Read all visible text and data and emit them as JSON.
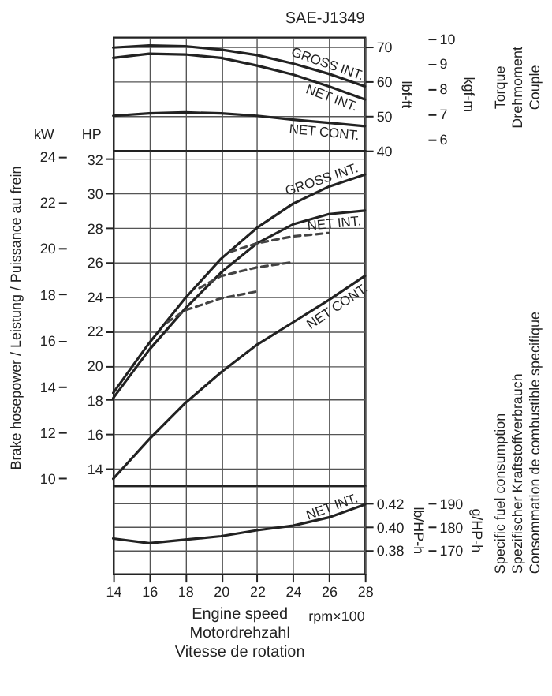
{
  "chart_data": [
    {
      "type": "line",
      "title": "SAE-J1349",
      "x": [
        14,
        16,
        18,
        20,
        22,
        24,
        26,
        28
      ],
      "xlim": [
        14,
        28
      ],
      "xticks": [
        14,
        16,
        18,
        20,
        22,
        24,
        26,
        28
      ],
      "ylim": [
        40,
        72.7
      ],
      "yticks": [
        40,
        50,
        60,
        70
      ],
      "ylabel": "lbf-ft",
      "y2label": "kgf-m",
      "y2lim": [
        5.53,
        10.05
      ],
      "y2ticks": [
        6,
        7,
        8,
        9,
        10
      ],
      "grid": true,
      "tick_labels": "y",
      "annotations": [
        "Torque\nDrehmoment\nCouple"
      ],
      "series": [
        {
          "name": "GROSS INT.",
          "color": "#222222",
          "values": [
            69.7,
            70.3,
            70.1,
            69.1,
            67.5,
            65.1,
            62.1,
            58.5
          ]
        },
        {
          "name": "NET INT.",
          "color": "#222222",
          "values": [
            66.7,
            67.9,
            67.7,
            66.7,
            64.5,
            61.9,
            58.5,
            54.7
          ]
        },
        {
          "name": "NET CONT.",
          "color": "#222222",
          "values": [
            50.0,
            50.7,
            51.0,
            50.7,
            50.0,
            48.9,
            48.0,
            47.0
          ]
        }
      ]
    },
    {
      "type": "line",
      "x": [
        14,
        16,
        18,
        20,
        22,
        24,
        26,
        28
      ],
      "xlim": [
        14,
        28
      ],
      "xticks": [
        14,
        16,
        18,
        20,
        22,
        24,
        26,
        28
      ],
      "ylim": [
        13,
        32.5
      ],
      "yticks": [
        14,
        16,
        18,
        20,
        22,
        24,
        26,
        28,
        30,
        32
      ],
      "ylabel": "HP",
      "y2label": "kW",
      "y2lim": [
        9.69,
        24.24
      ],
      "y2ticks": [
        10,
        12,
        14,
        16,
        18,
        20,
        22,
        24
      ],
      "grid": true,
      "tick_labels": "y",
      "annotations": [
        "Brake hosepower / Leistung / Puissance au frein"
      ],
      "series": [
        {
          "name": "GROSS INT.",
          "color": "#222222",
          "values": [
            18.4,
            21.3,
            23.9,
            26.2,
            28.0,
            29.4,
            30.4,
            31.1
          ]
        },
        {
          "name": "NET INT.",
          "color": "#222222",
          "values": [
            18.1,
            20.9,
            23.3,
            25.4,
            27.1,
            28.2,
            28.8,
            29.0
          ]
        },
        {
          "name": "NET CONT.",
          "color": "#222222",
          "values": [
            13.4,
            15.7,
            17.8,
            19.6,
            21.2,
            22.5,
            23.8,
            25.2
          ]
        },
        {
          "color": "#444444",
          "line_style": "dashed",
          "x": [
            17,
            18,
            20,
            22
          ],
          "values": [
            22.5,
            23.2,
            23.9,
            24.3
          ]
        },
        {
          "color": "#444444",
          "line_style": "dashed",
          "x": [
            18.8,
            20,
            22,
            24
          ],
          "values": [
            24.5,
            25.2,
            25.7,
            26.0
          ]
        },
        {
          "color": "#444444",
          "line_style": "dashed",
          "x": [
            20.5,
            22,
            24,
            26
          ],
          "values": [
            26.6,
            27.1,
            27.5,
            27.7
          ]
        }
      ]
    },
    {
      "type": "line",
      "x": [
        14,
        16,
        18,
        20,
        22,
        24,
        26,
        28
      ],
      "xlim": [
        14,
        28
      ],
      "xticks": [
        14,
        16,
        18,
        20,
        22,
        24,
        26,
        28
      ],
      "xlabel": "Engine speed\nMotordrehzahl\nVitesse de rotation",
      "ylim": [
        0.36,
        0.435
      ],
      "yticks": [
        0.38,
        {
          "value": 0.4,
          "label": "0.40"
        },
        0.42
      ],
      "ylabel": "lb/HP-h",
      "y2label": "g/HP-h",
      "y2lim": [
        160,
        197.5
      ],
      "y2ticks": [
        170,
        180,
        190
      ],
      "grid": true,
      "annotations": [
        "Specific fuel consumption\nSpezifischer Kraftstoffverbrauch\nConsommation de combustible specifique",
        "rpm×100"
      ],
      "series": [
        {
          "name": "NET INT.",
          "color": "#222222",
          "values": [
            0.39,
            0.386,
            0.389,
            0.392,
            0.397,
            0.401,
            0.408,
            0.419
          ]
        }
      ]
    }
  ]
}
